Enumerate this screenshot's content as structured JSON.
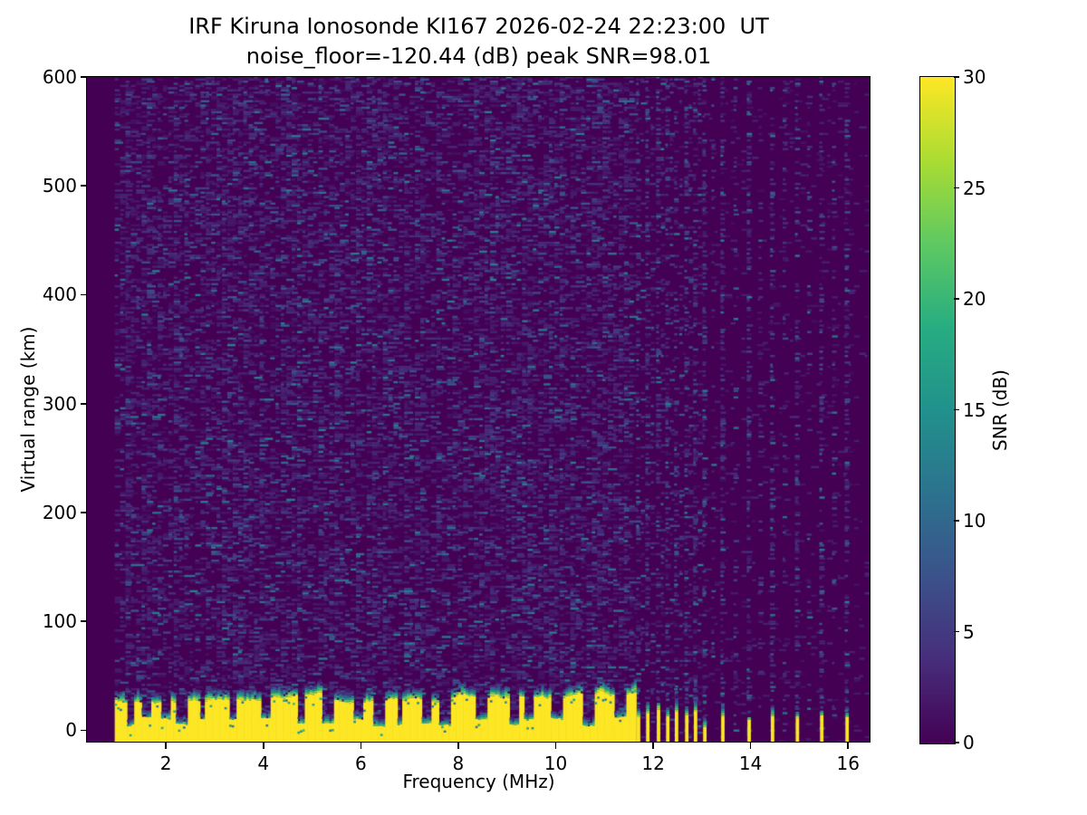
{
  "title": {
    "line1": "IRF Kiruna Ionosonde KI167 2026-02-24 22:23:00  UT",
    "line2": "noise_floor=-120.44 (dB) peak SNR=98.01"
  },
  "chart_data": {
    "type": "heatmap",
    "title": "IRF Kiruna Ionosonde KI167 2026-02-24 22:23:00  UT",
    "subtitle": "noise_floor=-120.44 (dB) peak SNR=98.01",
    "xlabel": "Frequency (MHz)",
    "ylabel": "Virtual range (km)",
    "xlim": [
      0.38,
      16.46
    ],
    "ylim": [
      -11.3,
      600
    ],
    "x_ticks": [
      2,
      4,
      6,
      8,
      10,
      12,
      14,
      16
    ],
    "y_ticks": [
      0,
      100,
      200,
      300,
      400,
      500,
      600
    ],
    "grid": false,
    "colorbar": {
      "label": "SNR (dB)",
      "ticks": [
        0,
        5,
        10,
        15,
        20,
        25,
        30
      ],
      "vmin": 0,
      "vmax": 30,
      "colormap": "viridis",
      "position": "right"
    },
    "colormap_stops": [
      {
        "t": 0.0,
        "c": "#440154"
      },
      {
        "t": 0.125,
        "c": "#472d7b"
      },
      {
        "t": 0.25,
        "c": "#3b528b"
      },
      {
        "t": 0.375,
        "c": "#2c728e"
      },
      {
        "t": 0.5,
        "c": "#21918c"
      },
      {
        "t": 0.625,
        "c": "#27ad81"
      },
      {
        "t": 0.75,
        "c": "#5ec962"
      },
      {
        "t": 0.875,
        "c": "#aadc32"
      },
      {
        "t": 1.0,
        "c": "#fde725"
      }
    ],
    "features": {
      "no_data_region_mhz": [
        0.38,
        0.95
      ],
      "ground_clutter_band": {
        "f_start": 0.95,
        "f_end": 11.61,
        "top_km_mean": 29,
        "top_km_min": 23,
        "top_km_max": 38,
        "notch_spacing_mhz": 0.5,
        "notch_depth_km": [
          3,
          12
        ],
        "description": "continuous saturated (>=30 dB) echo band from below 0 km up to ~25-38 km with quasi-periodic dark notches and a teal/green transition cap"
      },
      "stripes": [
        {
          "f_mhz": 11.7,
          "yellow_top_km": 12
        },
        {
          "f_mhz": 11.89,
          "yellow_top_km": 16
        },
        {
          "f_mhz": 12.11,
          "yellow_top_km": 19
        },
        {
          "f_mhz": 12.3,
          "yellow_top_km": 13
        },
        {
          "f_mhz": 12.48,
          "yellow_top_km": 17
        },
        {
          "f_mhz": 12.69,
          "yellow_top_km": 14
        },
        {
          "f_mhz": 12.87,
          "yellow_top_km": 17
        },
        {
          "f_mhz": 13.06,
          "yellow_top_km": 3
        },
        {
          "f_mhz": 13.43,
          "yellow_top_km": 12
        },
        {
          "f_mhz": 13.97,
          "yellow_top_km": 10
        },
        {
          "f_mhz": 14.45,
          "yellow_top_km": 13
        },
        {
          "f_mhz": 14.96,
          "yellow_top_km": 11
        },
        {
          "f_mhz": 15.46,
          "yellow_top_km": 14
        },
        {
          "f_mhz": 15.98,
          "yellow_top_km": 12
        }
      ],
      "noise_model": {
        "seed": 1337,
        "cell_mhz": 0.11,
        "cell_km": 2.0,
        "main_region_density": 0.42,
        "sparse_region_density": 0.05,
        "column_density": 0.38,
        "mid_column_density": 0.16,
        "snr_faint_db": [
          1,
          4
        ],
        "snr_mid_db": [
          4,
          8
        ],
        "snr_bright_db": [
          8,
          13
        ]
      }
    }
  }
}
